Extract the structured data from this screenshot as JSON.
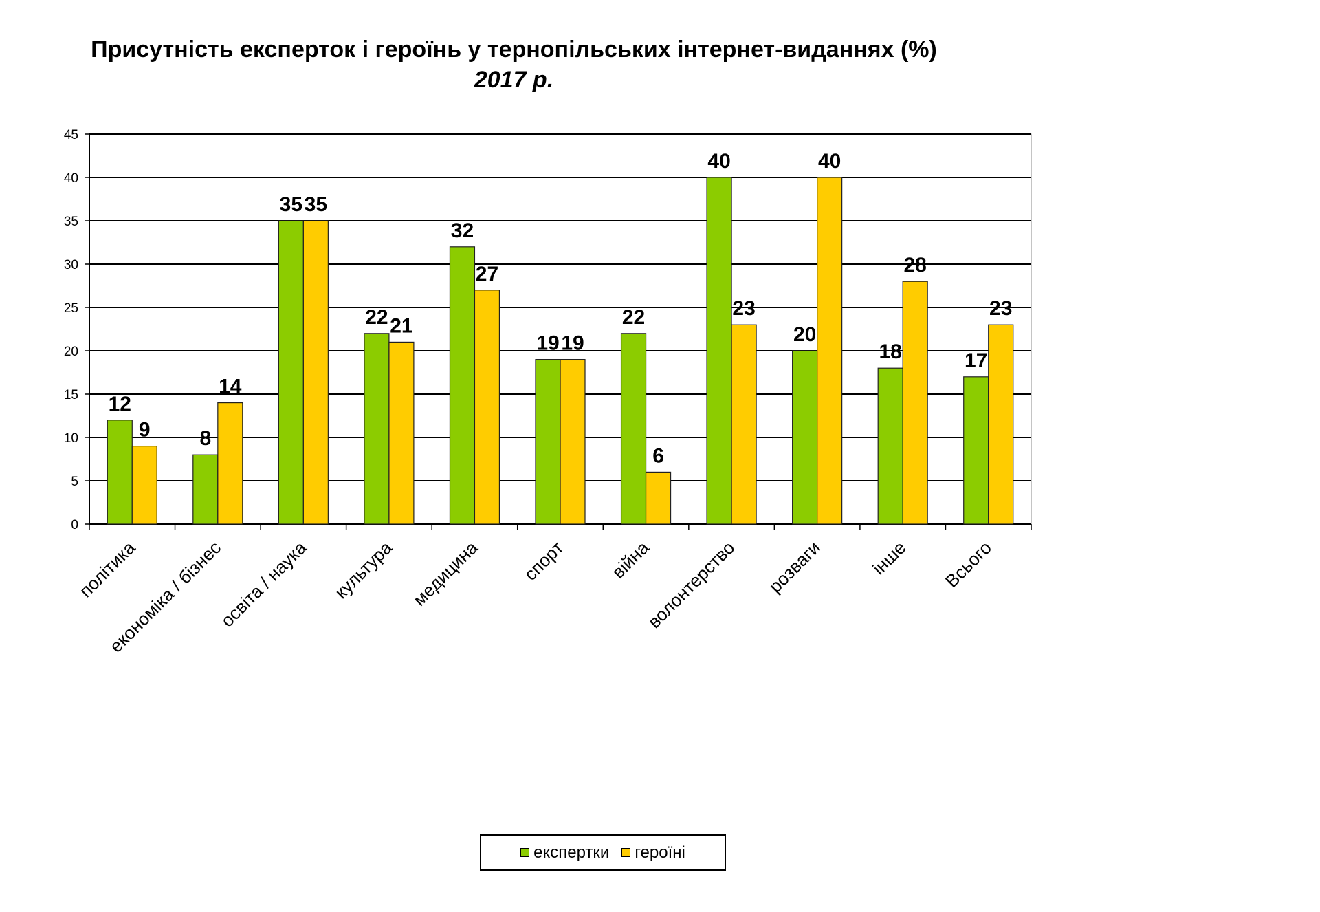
{
  "title": "Присутність експерток і героїнь у тернопільських інтернет-виданнях (%)",
  "subtitle": "2017 р.",
  "colors": {
    "series1": "#8ccc00",
    "series2": "#ffcc00",
    "grid": "#000000"
  },
  "chart_data": {
    "type": "bar",
    "title": "Присутність експерток і героїнь у тернопільських інтернет-виданнях (%)",
    "subtitle": "2017 р.",
    "categories": [
      "політика",
      "економіка / бізнес",
      "освіта / наука",
      "культура",
      "медицина",
      "спорт",
      "війна",
      "волонтерство",
      "розваги",
      "інше",
      "Всього"
    ],
    "series": [
      {
        "name": "експертки",
        "values": [
          12,
          8,
          35,
          22,
          32,
          19,
          22,
          40,
          20,
          18,
          17
        ]
      },
      {
        "name": "героїні",
        "values": [
          9,
          14,
          35,
          21,
          27,
          19,
          6,
          23,
          40,
          28,
          23
        ]
      }
    ],
    "ylim": [
      0,
      45
    ],
    "yticks": [
      0,
      5,
      10,
      15,
      20,
      25,
      30,
      35,
      40,
      45
    ],
    "grid": true,
    "legend_position": "bottom"
  }
}
